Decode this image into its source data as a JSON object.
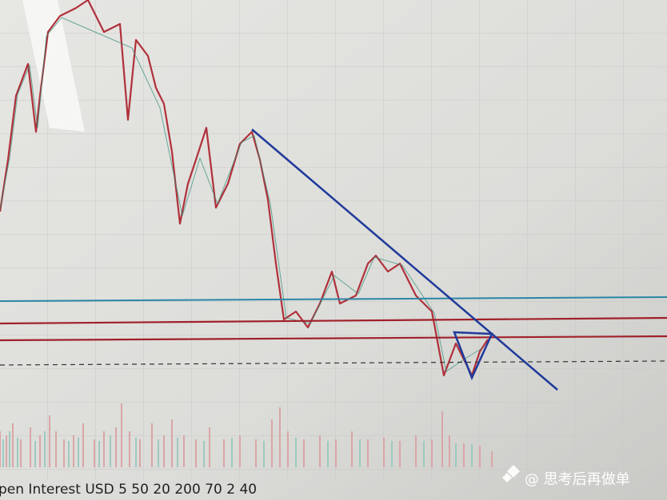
{
  "legend_text": "pen Interest USD 5 50 20 200 70 2 40",
  "watermark": "@ 思考后再做单"
}
